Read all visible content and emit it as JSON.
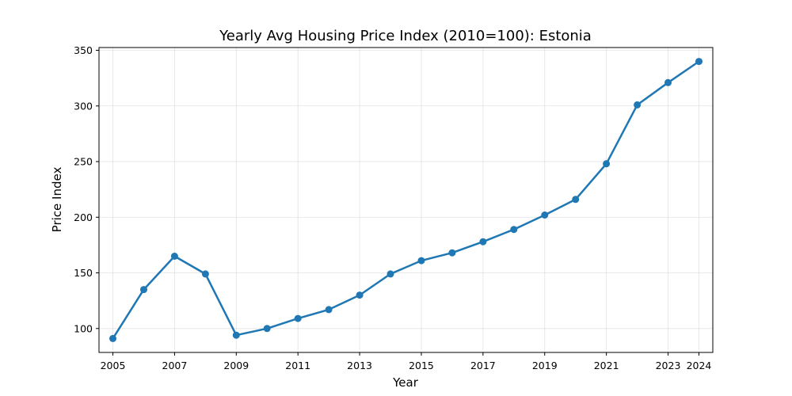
{
  "chart_data": {
    "type": "line",
    "title": "Yearly Avg Housing Price Index (2010=100): Estonia",
    "xlabel": "Year",
    "ylabel": "Price Index",
    "x": [
      2005,
      2006,
      2007,
      2008,
      2009,
      2010,
      2011,
      2012,
      2013,
      2014,
      2015,
      2016,
      2017,
      2018,
      2019,
      2020,
      2021,
      2022,
      2023,
      2024
    ],
    "series": [
      {
        "values": [
          91,
          135,
          165,
          149,
          94,
          100,
          109,
          117,
          130,
          149,
          161,
          168,
          178,
          189,
          202,
          216,
          248,
          301,
          321,
          340
        ],
        "color": "#1f77b4"
      }
    ],
    "xticks": [
      2005,
      2007,
      2009,
      2011,
      2013,
      2015,
      2017,
      2019,
      2021,
      2023,
      2024
    ],
    "yticks": [
      100,
      150,
      200,
      250,
      300,
      350
    ],
    "xlim": [
      2004.55,
      2024.45
    ],
    "ylim": [
      78.5,
      352.5
    ],
    "grid": true,
    "markers": true
  }
}
